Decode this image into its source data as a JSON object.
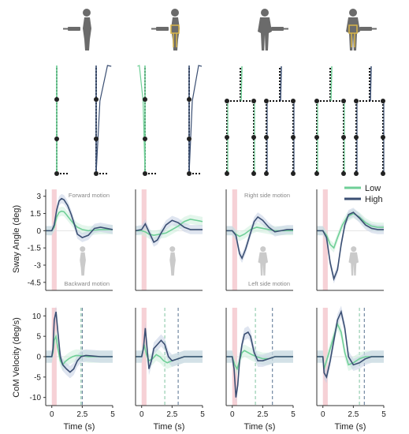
{
  "figure": {
    "silhouettes": [
      {
        "name": "person-side-view-icon",
        "highlight": false
      },
      {
        "name": "person-side-view-suit-icon",
        "highlight": true
      },
      {
        "name": "person-front-view-icon",
        "highlight": false
      },
      {
        "name": "person-front-view-suit-icon",
        "highlight": true
      }
    ],
    "colors": {
      "low": "#6fcf97",
      "high": "#3b4f73",
      "low_band": "#cdeedd",
      "high_band": "#c5cfe3",
      "stimulus": "#f6d1d6",
      "silhouette": "#6b6b6b",
      "suit": "#d8b54a",
      "axis": "#333333",
      "dashed_low": "#7fc3a0",
      "dashed_high": "#55708f"
    },
    "legend": {
      "low": "Low",
      "high": "High",
      "placement": "top-right"
    }
  },
  "chart_data": [
    {
      "type": "line",
      "ylabel": "Sway Angle (deg)",
      "xlabel": "",
      "ylim": [
        -5.2,
        3.6
      ],
      "xlim": [
        -0.5,
        5
      ],
      "yticks": [
        "3",
        "1.5",
        "0",
        "-1.5",
        "-3",
        "-4.5"
      ],
      "ytick_values": [
        3,
        1.5,
        0,
        -1.5,
        -3,
        -4.5
      ],
      "annotations": [
        "Forward motion",
        "Backward motion"
      ],
      "stimulus": [
        0,
        0.4
      ],
      "series": [
        {
          "name": "Low",
          "x": [
            -0.5,
            0,
            0.2,
            0.4,
            0.6,
            0.8,
            1,
            1.2,
            1.5,
            1.8,
            2.1,
            2.5,
            3,
            3.5,
            4,
            4.5,
            5
          ],
          "y": [
            0,
            0,
            0.3,
            1.2,
            1.6,
            1.7,
            1.65,
            1.4,
            1.0,
            0.6,
            0.3,
            0.1,
            0,
            0.05,
            0.1,
            0.1,
            0.1
          ]
        },
        {
          "name": "High",
          "x": [
            -0.5,
            0,
            0.2,
            0.4,
            0.6,
            0.8,
            1,
            1.3,
            1.6,
            1.9,
            2.1,
            2.5,
            3,
            3.5,
            4,
            4.5,
            5
          ],
          "y": [
            0,
            0,
            0.5,
            1.8,
            2.6,
            2.8,
            2.7,
            2.2,
            1.4,
            0.4,
            -0.3,
            -0.6,
            -0.4,
            0.2,
            0.3,
            0.2,
            0.1
          ]
        }
      ]
    },
    {
      "type": "line",
      "ylabel": "",
      "xlabel": "",
      "ylim": [
        -5.2,
        3.6
      ],
      "xlim": [
        -0.5,
        5
      ],
      "stimulus": [
        0,
        0.4
      ],
      "series": [
        {
          "name": "Low",
          "x": [
            -0.5,
            0,
            0.3,
            0.6,
            1,
            1.5,
            2,
            2.5,
            3,
            3.5,
            4,
            4.5,
            5
          ],
          "y": [
            0,
            0,
            -0.1,
            -0.3,
            -0.4,
            -0.3,
            -0.2,
            0.1,
            0.4,
            0.8,
            1.0,
            0.9,
            0.8
          ]
        },
        {
          "name": "High",
          "x": [
            -0.5,
            0,
            0.3,
            0.6,
            1,
            1.3,
            1.6,
            2,
            2.5,
            3,
            3.5,
            4,
            4.5,
            5
          ],
          "y": [
            0,
            0.1,
            0.6,
            -0.1,
            -1.0,
            -0.8,
            -0.2,
            0.5,
            0.9,
            0.7,
            0.3,
            0.1,
            0.1,
            0.1
          ]
        }
      ]
    },
    {
      "type": "line",
      "ylabel": "",
      "xlabel": "",
      "ylim": [
        -5.2,
        3.6
      ],
      "xlim": [
        -0.5,
        5
      ],
      "annotations": [
        "Right side motion",
        "Left side motion"
      ],
      "stimulus": [
        0,
        0.4
      ],
      "series": [
        {
          "name": "Low",
          "x": [
            -0.5,
            0,
            0.3,
            0.6,
            1,
            1.5,
            2,
            2.5,
            3,
            3.5,
            4,
            4.5,
            5
          ],
          "y": [
            0,
            0,
            -0.3,
            -0.5,
            -0.3,
            0.1,
            0.3,
            0.2,
            0.1,
            0,
            0,
            0,
            0
          ]
        },
        {
          "name": "High",
          "x": [
            -0.5,
            0,
            0.3,
            0.6,
            0.8,
            1.1,
            1.5,
            1.8,
            2.1,
            2.5,
            3,
            3.5,
            4,
            4.5,
            5
          ],
          "y": [
            0,
            0,
            -0.4,
            -2.0,
            -2.4,
            -1.6,
            -0.2,
            0.8,
            1.2,
            0.9,
            0.3,
            -0.1,
            0,
            0.1,
            0.1
          ]
        }
      ]
    },
    {
      "type": "line",
      "ylabel": "",
      "xlabel": "",
      "ylim": [
        -5.2,
        3.6
      ],
      "xlim": [
        -0.5,
        5
      ],
      "stimulus": [
        0,
        0.4
      ],
      "series": [
        {
          "name": "Low",
          "x": [
            -0.5,
            0,
            0.3,
            0.6,
            0.9,
            1.2,
            1.6,
            2,
            2.5,
            3,
            3.5,
            4,
            4.5,
            5
          ],
          "y": [
            0,
            0,
            -0.4,
            -1.2,
            -1.5,
            -0.6,
            0.5,
            1.2,
            1.5,
            1.2,
            0.7,
            0.4,
            0.3,
            0.3
          ]
        },
        {
          "name": "High",
          "x": [
            -0.5,
            0,
            0.3,
            0.6,
            0.9,
            1.2,
            1.5,
            1.8,
            2.1,
            2.5,
            3,
            3.5,
            4,
            4.5,
            5
          ],
          "y": [
            0,
            0,
            -0.6,
            -2.8,
            -4.2,
            -3.4,
            -1.2,
            0.5,
            1.4,
            1.6,
            1.1,
            0.5,
            0.2,
            0.1,
            0.1
          ]
        }
      ]
    },
    {
      "type": "line",
      "ylabel": "CoM Velocity (deg/s)",
      "xlabel": "Time (s)",
      "ylim": [
        -12,
        12
      ],
      "xlim": [
        -0.5,
        5
      ],
      "yticks": [
        "10",
        "5",
        "0",
        "-5",
        "-10"
      ],
      "ytick_values": [
        10,
        5,
        0,
        -5,
        -10
      ],
      "xticks": [
        "0",
        "2.5",
        "5"
      ],
      "xtick_values": [
        0,
        2.5,
        5
      ],
      "stimulus": [
        0,
        0.4
      ],
      "vlines": {
        "low": 2.4,
        "high": 2.5
      },
      "series": [
        {
          "name": "Low",
          "x": [
            -0.5,
            0,
            0.1,
            0.2,
            0.35,
            0.5,
            0.7,
            0.9,
            1.1,
            1.4,
            1.7,
            2,
            2.5,
            3,
            3.5,
            4,
            5
          ],
          "y": [
            0,
            0,
            1,
            4,
            5,
            2,
            -1,
            -2,
            -1.2,
            -0.5,
            0,
            0.3,
            0.2,
            0,
            0,
            0,
            0
          ]
        },
        {
          "name": "High",
          "x": [
            -0.5,
            0,
            0.1,
            0.2,
            0.35,
            0.5,
            0.7,
            0.9,
            1.2,
            1.5,
            1.8,
            2.1,
            2.4,
            2.8,
            3.2,
            4,
            5
          ],
          "y": [
            0,
            0,
            2,
            9,
            11,
            6,
            0,
            -2,
            -3,
            -3.8,
            -3,
            -1,
            0,
            0.3,
            0.2,
            0,
            0
          ]
        }
      ]
    },
    {
      "type": "line",
      "ylabel": "",
      "xlabel": "Time (s)",
      "ylim": [
        -12,
        12
      ],
      "xlim": [
        -0.5,
        5
      ],
      "xticks": [
        "0",
        "2.5",
        "5"
      ],
      "xtick_values": [
        0,
        2.5,
        5
      ],
      "stimulus": [
        0,
        0.4
      ],
      "vlines": {
        "low": 1.9,
        "high": 3.0
      },
      "series": [
        {
          "name": "Low",
          "x": [
            -0.5,
            0,
            0.2,
            0.4,
            0.6,
            0.9,
            1.2,
            1.5,
            1.8,
            2.1,
            2.5,
            3,
            3.5,
            4,
            5
          ],
          "y": [
            0,
            0,
            3,
            0.5,
            -1,
            -0.5,
            0.5,
            0,
            -1,
            -1.5,
            -1,
            -0.5,
            0,
            0,
            0
          ]
        },
        {
          "name": "High",
          "x": [
            -0.5,
            0,
            0.15,
            0.3,
            0.45,
            0.6,
            0.8,
            1,
            1.3,
            1.6,
            1.9,
            2.2,
            2.5,
            3,
            3.5,
            5
          ],
          "y": [
            0,
            0,
            2,
            7,
            2,
            -3,
            -1,
            2,
            3,
            4,
            3,
            0,
            -1,
            -0.5,
            0,
            0
          ]
        }
      ]
    },
    {
      "type": "line",
      "ylabel": "",
      "xlabel": "Time (s)",
      "ylim": [
        -12,
        12
      ],
      "xlim": [
        -0.5,
        5
      ],
      "xticks": [
        "0",
        "2.5",
        "5"
      ],
      "xtick_values": [
        0,
        2.5,
        5
      ],
      "stimulus": [
        0,
        0.4
      ],
      "vlines": {
        "low": 1.9,
        "high": 3.3
      },
      "series": [
        {
          "name": "Low",
          "x": [
            -0.5,
            0,
            0.2,
            0.4,
            0.6,
            0.8,
            1,
            1.3,
            1.6,
            2,
            2.5,
            3,
            3.5,
            4,
            5
          ],
          "y": [
            0,
            0,
            -2,
            -3,
            -1,
            1,
            1.5,
            1,
            0.5,
            0,
            -0.5,
            -0.5,
            0,
            0,
            0
          ]
        },
        {
          "name": "High",
          "x": [
            -0.5,
            0,
            0.15,
            0.3,
            0.45,
            0.6,
            0.8,
            1,
            1.3,
            1.5,
            1.8,
            2.1,
            2.5,
            3,
            3.5,
            4,
            5
          ],
          "y": [
            0,
            0,
            -3,
            -10,
            -7,
            -1,
            3,
            5.5,
            6,
            5,
            1,
            -1,
            -1,
            -0.5,
            0,
            0,
            0
          ]
        }
      ]
    },
    {
      "type": "line",
      "ylabel": "",
      "xlabel": "Time (s)",
      "ylim": [
        -12,
        12
      ],
      "xlim": [
        -0.5,
        5
      ],
      "xticks": [
        "0",
        "2.5",
        "5"
      ],
      "xtick_values": [
        0,
        2.5,
        5
      ],
      "stimulus": [
        0,
        0.4
      ],
      "vlines": {
        "low": 3.0,
        "high": 3.4
      },
      "series": [
        {
          "name": "Low",
          "x": [
            -0.5,
            0,
            0.1,
            0.3,
            0.6,
            0.9,
            1.2,
            1.5,
            1.8,
            2.1,
            2.5,
            3,
            3.5,
            4,
            5
          ],
          "y": [
            0,
            0,
            -3,
            -1,
            2,
            5,
            8,
            6,
            1,
            -2,
            -1.5,
            -0.5,
            0,
            0,
            0
          ]
        },
        {
          "name": "High",
          "x": [
            -0.5,
            0,
            0.1,
            0.3,
            0.6,
            0.9,
            1.2,
            1.5,
            1.8,
            2.1,
            2.5,
            3,
            3.5,
            4,
            5
          ],
          "y": [
            0,
            0,
            -4,
            -5,
            -1,
            4,
            9,
            11,
            7,
            0,
            -2,
            -1.5,
            -0.5,
            0,
            0
          ]
        }
      ]
    }
  ]
}
